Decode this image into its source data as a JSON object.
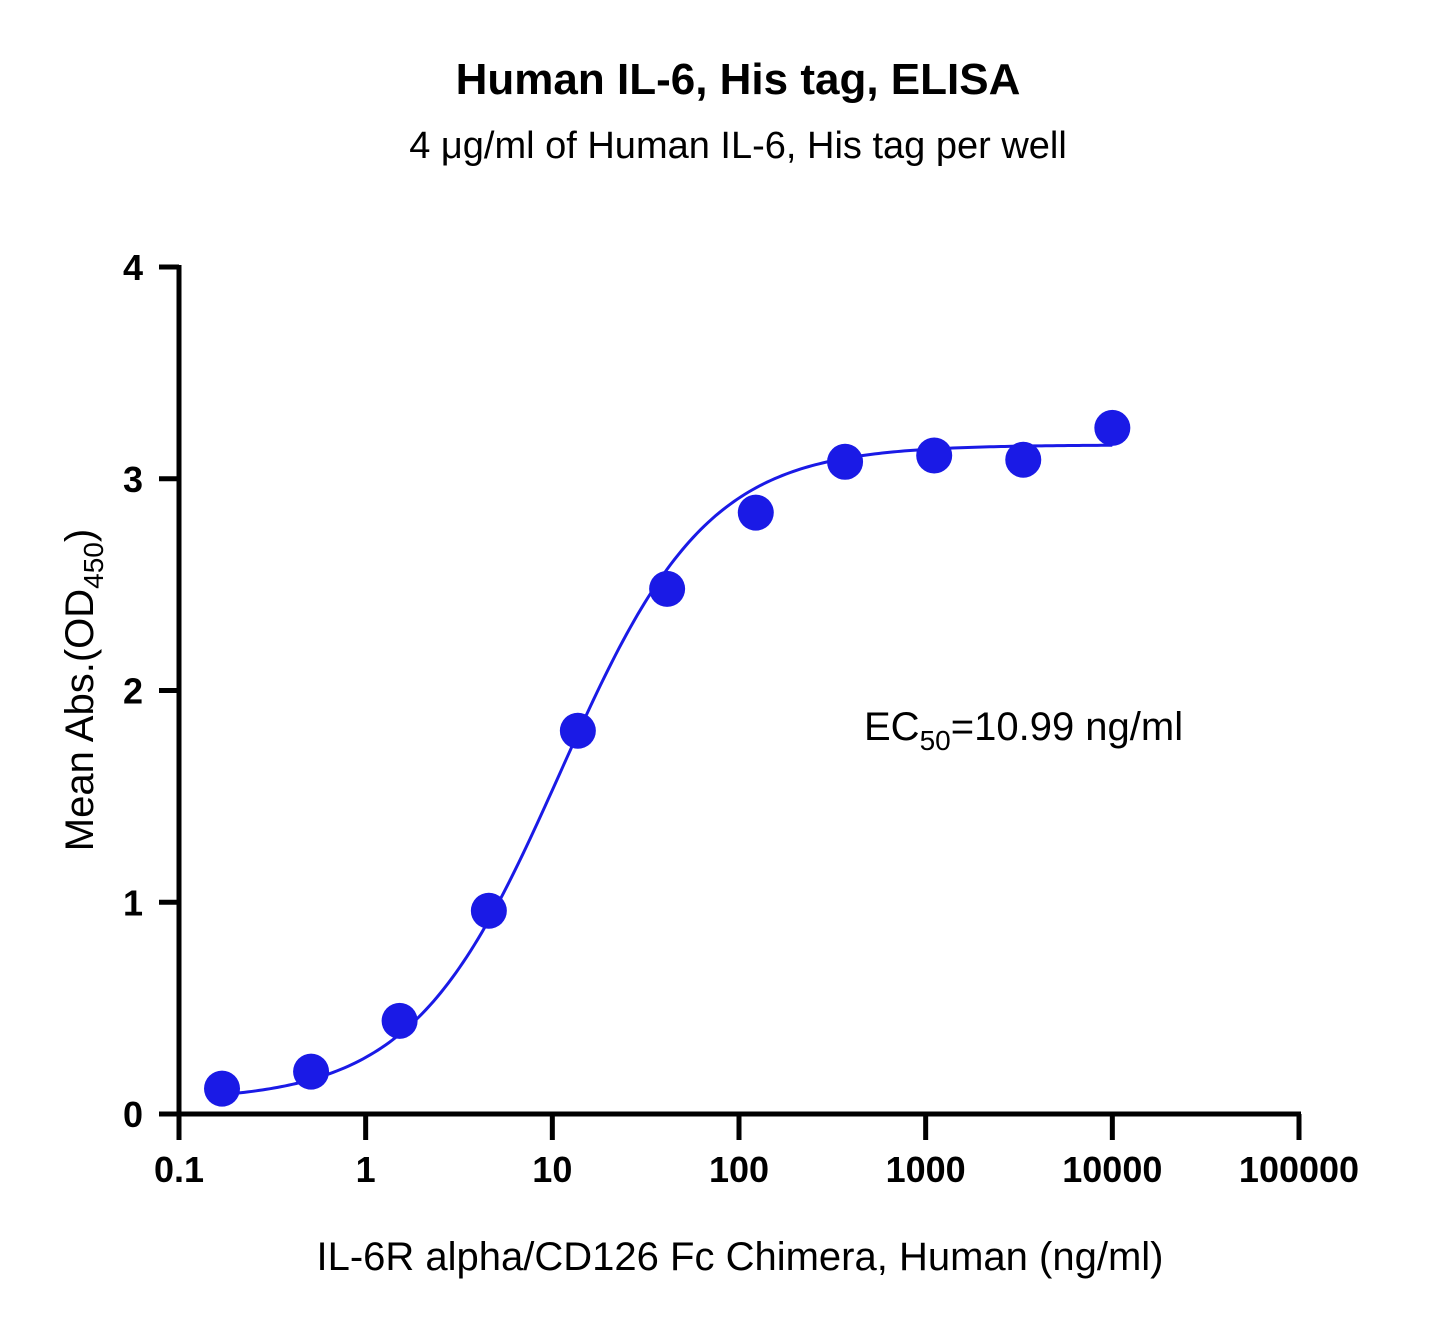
{
  "chart_data": {
    "type": "scatter",
    "title": "Human IL-6, His tag, ELISA",
    "subtitle": "4 μg/ml of Human IL-6, His tag per well",
    "xlabel": "IL-6R alpha/CD126 Fc Chimera, Human (ng/ml)",
    "ylabel": {
      "main": "Mean Abs.(OD",
      "sub": "450",
      "end": ")"
    },
    "xscale": "log",
    "xlim": [
      0.1,
      100000
    ],
    "ylim": [
      0,
      4
    ],
    "x_ticks": [
      0.1,
      1,
      10,
      100,
      1000,
      10000,
      100000
    ],
    "x_tick_labels": [
      "0.1",
      "1",
      "10",
      "100",
      "1000",
      "10000",
      "100000"
    ],
    "y_ticks": [
      0,
      1,
      2,
      3,
      4
    ],
    "y_tick_labels": [
      "0",
      "1",
      "2",
      "3",
      "4"
    ],
    "grid": false,
    "annotation": {
      "main": "EC",
      "sub": "50",
      "rest": "=10.99 ng/ml"
    },
    "color": "#1a1ae6",
    "series": [
      {
        "x": [
          0.17,
          0.51,
          1.52,
          4.57,
          13.7,
          41.2,
          123,
          370,
          1111,
          3333,
          10000
        ],
        "y": [
          0.12,
          0.2,
          0.44,
          0.96,
          1.81,
          2.48,
          2.84,
          3.08,
          3.11,
          3.09,
          3.24
        ]
      }
    ],
    "fit_curve": {
      "type": "4PL",
      "bottom": 0.06,
      "top": 3.16,
      "ec50": 10.99,
      "hill": 1.1
    }
  }
}
